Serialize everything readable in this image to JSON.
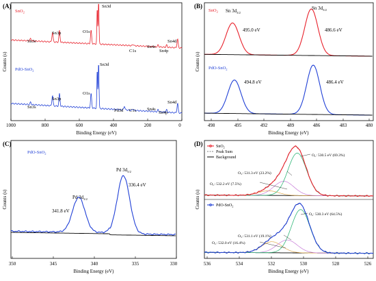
{
  "figure": {
    "panels": [
      {
        "id": "A",
        "label": "(A)",
        "xlabel": "Binding Energy (eV)",
        "ylabel": "Counts (s)",
        "xticks": [
          "1000",
          "800",
          "600",
          "400",
          "200",
          "0"
        ]
      },
      {
        "id": "B",
        "label": "(B)",
        "xlabel": "Binding Energy (eV)",
        "ylabel": "Counts (s)",
        "xticks": [
          "498",
          "495",
          "492",
          "489",
          "486",
          "483",
          "480"
        ]
      },
      {
        "id": "C",
        "label": "(C)",
        "xlabel": "Binding Energy (eV)",
        "ylabel": "Counts (s)",
        "xticks": [
          "350",
          "345",
          "340",
          "335",
          "330"
        ]
      },
      {
        "id": "D",
        "label": "(D)",
        "xlabel": "Binding Energy (eV)",
        "ylabel": "Counts (s)",
        "xticks": [
          "536",
          "534",
          "532",
          "530",
          "528",
          "526"
        ]
      }
    ]
  },
  "chart_data": [
    {
      "panel": "A",
      "type": "line",
      "xlabel": "Binding Energy (eV)",
      "ylabel": "Counts (s)",
      "xlim": [
        1000,
        0
      ],
      "x_reversed": true,
      "colors": {
        "SnO2": "#e8202a",
        "PdO-SnO2": "#1f3fd6"
      },
      "series": [
        {
          "name": "SnO2",
          "color": "#e8202a",
          "peaks": [
            {
              "x": 885,
              "label": "Sn3s"
            },
            {
              "x": 757,
              "label": "Sn3p"
            },
            {
              "x": 716,
              "label": "Sn3p"
            },
            {
              "x": 531,
              "label": "O1s"
            },
            {
              "x": 487,
              "label": "Sn3d"
            },
            {
              "x": 495,
              "label": "Sn3d"
            },
            {
              "x": 285,
              "label": "C1s"
            },
            {
              "x": 139,
              "label": "Sn4s"
            },
            {
              "x": 89,
              "label": "Sn4p"
            },
            {
              "x": 25,
              "label": "Sn4d"
            }
          ]
        },
        {
          "name": "PdO-SnO2",
          "color": "#1f3fd6",
          "peaks": [
            {
              "x": 885,
              "label": "Sn3s"
            },
            {
              "x": 757,
              "label": "Sn3p"
            },
            {
              "x": 716,
              "label": "Sn3p"
            },
            {
              "x": 531,
              "label": "O1s"
            },
            {
              "x": 487,
              "label": "Sn3d"
            },
            {
              "x": 495,
              "label": "Sn3d"
            },
            {
              "x": 336,
              "label": "Pd3d"
            },
            {
              "x": 285,
              "label": "C1s"
            },
            {
              "x": 139,
              "label": "Sn4s"
            },
            {
              "x": 89,
              "label": "Sn4p"
            },
            {
              "x": 25,
              "label": "Sn4d"
            }
          ]
        }
      ],
      "labels": {
        "SnO2": [
          "Sn3s",
          "Sn3p",
          "O1s",
          "Sn3d",
          "C1s",
          "Sn4s",
          "Sn4p",
          "Sn4d"
        ],
        "PdO-SnO2": [
          "Sn3s",
          "Sn3p",
          "O1s",
          "Sn3d",
          "Pd3d",
          "C1s",
          "Sn4s",
          "Sn4p",
          "Sn4d"
        ]
      },
      "legend": [
        "SnO2",
        "PdO-SnO2"
      ]
    },
    {
      "panel": "B",
      "type": "line",
      "xlabel": "Binding Energy (eV)",
      "ylabel": "Counts (s)",
      "xlim": [
        498,
        480
      ],
      "x_reversed": true,
      "series": [
        {
          "name": "SnO2",
          "color": "#e8202a",
          "peaks": [
            {
              "x": 495.0,
              "label": "Sn 3d3/2",
              "value_text": "495.0 eV"
            },
            {
              "x": 486.6,
              "label": "Sn 3d5/2",
              "value_text": "486.6 eV"
            }
          ]
        },
        {
          "name": "PdO-SnO2",
          "color": "#1f3fd6",
          "peaks": [
            {
              "x": 494.8,
              "value_text": "494.8 eV"
            },
            {
              "x": 486.4,
              "value_text": "486.4 eV"
            }
          ]
        }
      ],
      "annotations": [
        "Sn 3d",
        "3/2",
        "Sn 3d",
        "5/2",
        "495.0 eV",
        "486.6 eV",
        "494.8 eV",
        "486.4 eV"
      ],
      "legend": [
        "SnO2",
        "PdO-SnO2"
      ]
    },
    {
      "panel": "C",
      "type": "line",
      "xlabel": "Binding Energy (eV)",
      "ylabel": "Counts (s)",
      "xlim": [
        350,
        330
      ],
      "x_reversed": true,
      "series": [
        {
          "name": "PdO-SnO2",
          "color": "#1f3fd6",
          "peaks": [
            {
              "x": 341.8,
              "label": "Pd 3d3/2",
              "value_text": "341.8 eV"
            },
            {
              "x": 336.4,
              "label": "Pd 3d5/2",
              "value_text": "336.4 eV"
            }
          ]
        }
      ],
      "background_color": "#000000",
      "annotations": [
        "Pd 3d",
        "3/2",
        "341.8 eV",
        "Pd 3d",
        "5/2",
        "336.4 eV"
      ],
      "legend": [
        "PdO-SnO2"
      ]
    },
    {
      "panel": "D",
      "type": "line",
      "xlabel": "Binding Energy (eV)",
      "ylabel": "Counts (s)",
      "xlim": [
        536,
        526
      ],
      "x_reversed": true,
      "subplots": [
        {
          "name": "SnO2",
          "legend": [
            "SnO2",
            "Peak Sum",
            "Background"
          ],
          "components": [
            {
              "label": "OL",
              "x": 530.5,
              "percent": 69.3,
              "color": "#33b87a",
              "text": "O: 530.5 eV  (69.3%)"
            },
            {
              "label": "OV",
              "x": 531.3,
              "percent": 23.2,
              "color": "#c77ad8",
              "text": "O: 531.3 eV (23.2%)"
            },
            {
              "label": "OC",
              "x": 532.2,
              "percent": 7.5,
              "color": "#e0a94a",
              "text": "O: 532.2 eV (7.5%)"
            }
          ]
        },
        {
          "name": "PdO-SnO2",
          "legend": [
            "PdO-SnO2"
          ],
          "components": [
            {
              "label": "OL",
              "x": 530.3,
              "percent": 64.5,
              "color": "#33b87a",
              "text": "O: 530.3 eV (64.5%)"
            },
            {
              "label": "OV",
              "x": 531.1,
              "percent": 19.1,
              "color": "#c77ad8",
              "text": "O: 531.1 eV (19.1%)"
            },
            {
              "label": "OC",
              "x": 532.0,
              "percent": 16.4,
              "color": "#e0a94a",
              "text": "O: 532.0 eV (16.4%)"
            }
          ]
        }
      ],
      "colors": {
        "SnO2": "#e8202a",
        "PdO-SnO2": "#1f3fd6",
        "Peak Sum": "#555555",
        "Background": "#000000"
      }
    }
  ],
  "text": {
    "A": {
      "legend_sno2": "SnO",
      "legend_pdo": "PdO-SnO",
      "red": [
        "Sn3s",
        "Sn3p",
        "O1s",
        "Sn3d",
        "C1s",
        "Sn4s",
        "Sn4p",
        "Sn4d"
      ],
      "blue": [
        "Sn3s",
        "Sn3p",
        "O1s",
        "Sn3d",
        "Pd3d",
        "C1s",
        "Sn4s",
        "Sn4p",
        "Sn4d"
      ]
    },
    "B": {
      "legend_sno2": "SnO",
      "legend_pdo": "PdO-SnO",
      "sn3d32": "Sn 3d",
      "sub32": "3/2",
      "sn3d52": "Sn 3d",
      "sub52": "5/2",
      "v1": "495.0 eV",
      "v2": "486.6 eV",
      "v3": "494.8 eV",
      "v4": "486.4 eV"
    },
    "C": {
      "legend_pdo": "PdO-SnO",
      "pd32": "Pd 3d",
      "sub32": "3/2",
      "v32": "341.8 eV",
      "pd52": "Pd 3d",
      "sub52": "5/2",
      "v52": "336.4 eV"
    },
    "D": {
      "leg1": "SnO",
      "leg2": "Peak Sum",
      "leg3": "Background",
      "leg_pdo": "PdO-SnO",
      "ol1": "O",
      "ol1_sub": "L",
      "ol1_txt": ": 530.5 eV  (69.3%)",
      "ov1": "O",
      "ov1_sub": "V",
      "ov1_txt": ": 531.3 eV (23.2%)",
      "oc1": "O",
      "oc1_sub": "C",
      "oc1_txt": ": 532.2 eV (7.5%)",
      "ol2": "O",
      "ol2_sub": "L",
      "ol2_txt": ": 530.3 eV (64.5%)",
      "ov2": "O",
      "ov2_sub": "V",
      "ov2_txt": ": 531.1 eV (19.1%)",
      "oc2": "O",
      "oc2_sub": "C",
      "oc2_txt": ": 532.0 eV (16.4%)"
    },
    "sub2": "2"
  }
}
